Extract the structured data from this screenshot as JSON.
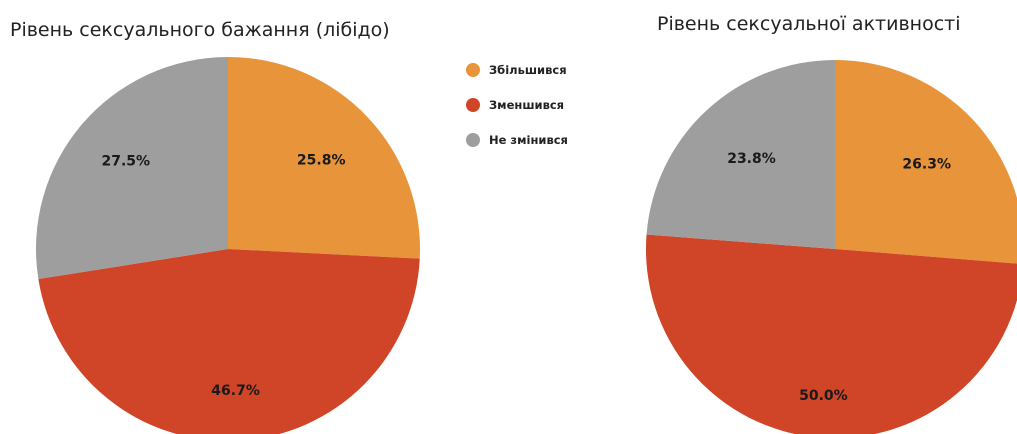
{
  "legend": {
    "placement": "center-top",
    "items": [
      {
        "label": "Збільшився",
        "color": "#E8943A"
      },
      {
        "label": "Зменшився",
        "color": "#D04527"
      },
      {
        "label": "Не змінився",
        "color": "#9E9E9E"
      }
    ]
  },
  "chart_data": [
    {
      "type": "pie",
      "title": "Рівень сексуального бажання (лібідо)",
      "categories": [
        "Збільшився",
        "Зменшився",
        "Не змінився"
      ],
      "values": [
        25.8,
        46.7,
        27.5
      ],
      "labels": [
        "25.8%",
        "46.7%",
        "27.5%"
      ],
      "colors": [
        "#E8943A",
        "#D04527",
        "#9E9E9E"
      ],
      "start_angle": "12 o'clock",
      "direction": "clockwise"
    },
    {
      "type": "pie",
      "title": "Рівень сексуальної активності",
      "categories": [
        "Збільшився",
        "Зменшився",
        "Не змінився"
      ],
      "values": [
        26.3,
        50.0,
        23.8
      ],
      "labels": [
        "26.3%",
        "50.0%",
        "23.8%"
      ],
      "colors": [
        "#E8943A",
        "#D04527",
        "#9E9E9E"
      ],
      "start_angle": "12 o'clock",
      "direction": "clockwise"
    }
  ]
}
